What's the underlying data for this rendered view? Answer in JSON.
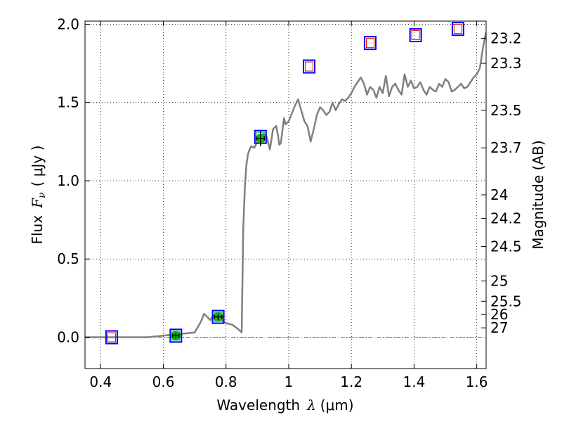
{
  "chart_data": {
    "type": "scatter",
    "title": "",
    "xlabel_prefix": "Wavelength",
    "xlabel_symbol": "λ",
    "xlabel_unit": "(μm)",
    "ylabel_prefix": "Flux",
    "ylabel_symbol": "F",
    "ylabel_subscript": "ν",
    "ylabel_unit": "( μJy )",
    "y2label": "Magnitude (AB)",
    "xlim": [
      0.35,
      1.63
    ],
    "ylim": [
      -0.2,
      2.02
    ],
    "x_ticks": [
      0.4,
      0.6,
      0.8,
      1.0,
      1.2,
      1.4,
      1.6
    ],
    "x_tick_labels": [
      "0.4",
      "0.6",
      "0.8",
      "1",
      "1.2",
      "1.4",
      "1.6"
    ],
    "y_ticks": [
      0.0,
      0.5,
      1.0,
      1.5,
      2.0
    ],
    "y_tick_labels": [
      "0.0",
      "0.5",
      "1.0",
      "1.5",
      "2.0"
    ],
    "magnitude_ticks": [
      {
        "label": "23.2",
        "flux": 1.91
      },
      {
        "label": "23.3",
        "flux": 1.75
      },
      {
        "label": "23.5",
        "flux": 1.45
      },
      {
        "label": "23.7",
        "flux": 1.21
      },
      {
        "label": "24",
        "flux": 0.91
      },
      {
        "label": "24.2",
        "flux": 0.76
      },
      {
        "label": "24.5",
        "flux": 0.58
      },
      {
        "label": "25",
        "flux": 0.36
      },
      {
        "label": "25.5",
        "flux": 0.23
      },
      {
        "label": "26",
        "flux": 0.145
      },
      {
        "label": "27",
        "flux": 0.06
      }
    ],
    "grid": true,
    "zero_line": true,
    "colors": {
      "model": "#808080",
      "box": "#0000ff",
      "inner_box": "#ff0000",
      "zero_line": "#00aaaa",
      "detection": "#11bb11",
      "error_bar": "#000000"
    },
    "model_spectrum": {
      "x": [
        0.35,
        0.45,
        0.55,
        0.6,
        0.65,
        0.7,
        0.72,
        0.73,
        0.74,
        0.75,
        0.76,
        0.77,
        0.78,
        0.79,
        0.8,
        0.82,
        0.84,
        0.85,
        0.855,
        0.86,
        0.865,
        0.87,
        0.875,
        0.88,
        0.89,
        0.9,
        0.91,
        0.92,
        0.93,
        0.94,
        0.95,
        0.96,
        0.965,
        0.97,
        0.975,
        0.98,
        0.985,
        0.99,
        1.0,
        1.01,
        1.02,
        1.03,
        1.04,
        1.05,
        1.06,
        1.07,
        1.08,
        1.09,
        1.1,
        1.11,
        1.12,
        1.13,
        1.14,
        1.15,
        1.16,
        1.17,
        1.18,
        1.19,
        1.2,
        1.21,
        1.22,
        1.23,
        1.24,
        1.25,
        1.26,
        1.27,
        1.28,
        1.29,
        1.3,
        1.31,
        1.32,
        1.33,
        1.34,
        1.35,
        1.36,
        1.37,
        1.38,
        1.39,
        1.4,
        1.41,
        1.42,
        1.43,
        1.44,
        1.45,
        1.46,
        1.47,
        1.48,
        1.49,
        1.5,
        1.51,
        1.52,
        1.53,
        1.54,
        1.55,
        1.56,
        1.57,
        1.58,
        1.59,
        1.6,
        1.61,
        1.62,
        1.63
      ],
      "y": [
        0.0,
        0.0,
        0.0,
        0.01,
        0.02,
        0.03,
        0.1,
        0.15,
        0.13,
        0.11,
        0.14,
        0.12,
        0.15,
        0.1,
        0.09,
        0.08,
        0.05,
        0.03,
        0.7,
        0.95,
        1.1,
        1.17,
        1.2,
        1.22,
        1.21,
        1.25,
        1.29,
        1.3,
        1.28,
        1.2,
        1.33,
        1.35,
        1.3,
        1.23,
        1.24,
        1.32,
        1.4,
        1.36,
        1.38,
        1.43,
        1.48,
        1.52,
        1.45,
        1.38,
        1.35,
        1.25,
        1.33,
        1.42,
        1.47,
        1.45,
        1.42,
        1.44,
        1.5,
        1.45,
        1.49,
        1.52,
        1.51,
        1.53,
        1.56,
        1.6,
        1.63,
        1.66,
        1.62,
        1.55,
        1.6,
        1.58,
        1.53,
        1.6,
        1.56,
        1.67,
        1.54,
        1.6,
        1.62,
        1.58,
        1.55,
        1.68,
        1.6,
        1.64,
        1.59,
        1.6,
        1.63,
        1.58,
        1.55,
        1.6,
        1.58,
        1.57,
        1.62,
        1.6,
        1.65,
        1.63,
        1.57,
        1.58,
        1.6,
        1.62,
        1.59,
        1.6,
        1.63,
        1.66,
        1.68,
        1.72,
        1.85,
        1.95
      ]
    },
    "photometry": [
      {
        "x": 0.435,
        "model_flux": 0.0,
        "observed": false
      },
      {
        "x": 0.64,
        "model_flux": 0.01,
        "observed": true,
        "flux": 0.01,
        "x_err": 0.01,
        "y_err": 0.02
      },
      {
        "x": 0.775,
        "model_flux": 0.13,
        "observed": true,
        "flux": 0.13,
        "x_err": 0.012,
        "y_err": 0.02
      },
      {
        "x": 0.91,
        "model_flux": 1.28,
        "observed": true,
        "flux": 1.27,
        "x_err": 0.012,
        "y_err": 0.05
      },
      {
        "x": 1.065,
        "model_flux": 1.73,
        "observed": false
      },
      {
        "x": 1.26,
        "model_flux": 1.88,
        "observed": false
      },
      {
        "x": 1.405,
        "model_flux": 1.93,
        "observed": false
      },
      {
        "x": 1.54,
        "model_flux": 1.97,
        "observed": false
      }
    ]
  }
}
